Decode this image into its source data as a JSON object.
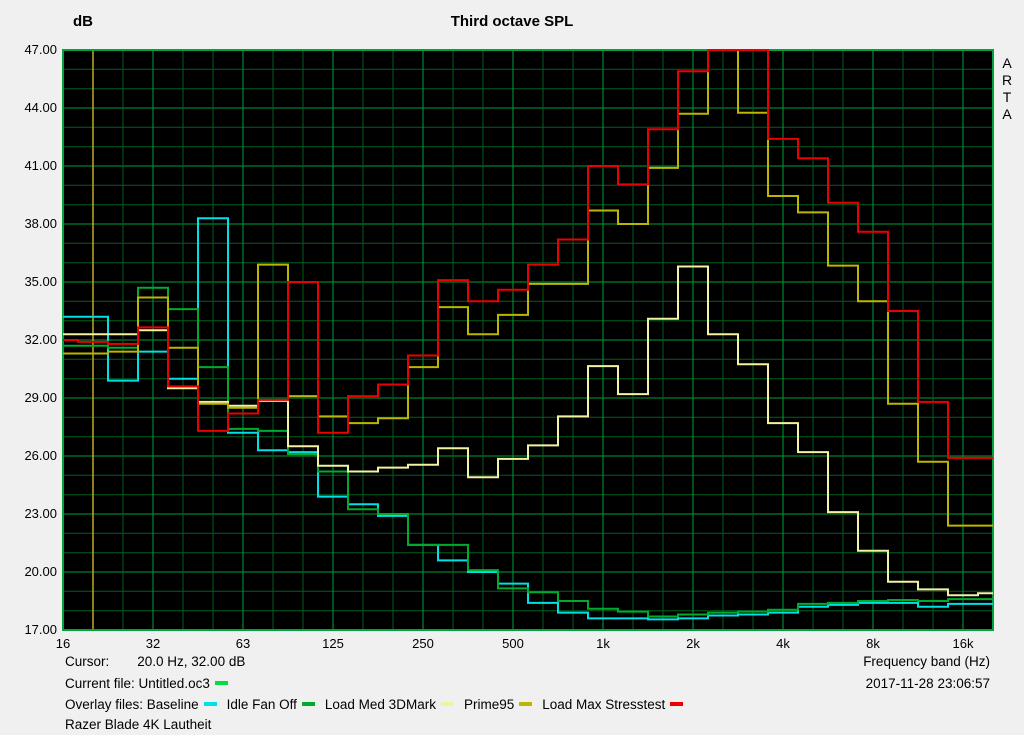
{
  "window": {
    "background": "#f0f0f0",
    "app_watermark": "ARTA"
  },
  "title": "Third octave SPL",
  "y_axis_label": "dB",
  "footer": {
    "cursor_label": "Cursor:",
    "cursor_value": "20.0 Hz, 32.00 dB",
    "current_file_label": "Current file:",
    "current_file_name": "Untitled.oc3",
    "current_file_color": "#00dd3c",
    "overlay_label": "Overlay files:",
    "xlabel": "Frequency band (Hz)",
    "datetime": "2017-11-28  23:06:57",
    "note": "Razer Blade 4K Lautheit"
  },
  "colors": {
    "plot_bg": "#000000",
    "grid_major": "#009e38",
    "grid_minor": "#00611c",
    "border": "#00a33c",
    "cursor_line": "#c0aa20",
    "text": "#000000"
  },
  "chart_data": {
    "type": "line",
    "subtype": "third-octave step spectrum",
    "title": "Third octave SPL",
    "xlabel": "Frequency band (Hz)",
    "ylabel": "dB",
    "ylim": [
      17,
      47
    ],
    "y_major_step_db": 3,
    "y_minor_step_db": 1,
    "grid": true,
    "y_ticks": [
      "47.00",
      "44.00",
      "41.00",
      "38.00",
      "35.00",
      "32.00",
      "29.00",
      "26.00",
      "23.00",
      "20.00",
      "17.00"
    ],
    "x_ticks": [
      {
        "label": "16",
        "band_index": 0
      },
      {
        "label": "32",
        "band_index": 3
      },
      {
        "label": "63",
        "band_index": 6
      },
      {
        "label": "125",
        "band_index": 9
      },
      {
        "label": "250",
        "band_index": 12
      },
      {
        "label": "500",
        "band_index": 15
      },
      {
        "label": "1k",
        "band_index": 18
      },
      {
        "label": "2k",
        "band_index": 21
      },
      {
        "label": "4k",
        "band_index": 24
      },
      {
        "label": "8k",
        "band_index": 27
      },
      {
        "label": "16k",
        "band_index": 30
      }
    ],
    "categories": [
      "16",
      "20",
      "25",
      "31.5",
      "40",
      "50",
      "63",
      "80",
      "100",
      "125",
      "160",
      "200",
      "250",
      "315",
      "400",
      "500",
      "630",
      "800",
      "1k",
      "1.25k",
      "1.6k",
      "2k",
      "2.5k",
      "3.15k",
      "4k",
      "5k",
      "6.3k",
      "8k",
      "10k",
      "12.5k",
      "16k",
      "20k"
    ],
    "cursor": {
      "freq": "20.0 Hz",
      "value_db": 32.0,
      "band_index": 1
    },
    "clip_note": "values above 47 are clipped at the plot top edge",
    "series": [
      {
        "name": "Baseline",
        "color": "#00e0e6",
        "values": [
          33.2,
          33.2,
          29.9,
          31.4,
          30.0,
          38.3,
          27.2,
          26.3,
          26.2,
          23.9,
          23.5,
          22.9,
          21.4,
          20.6,
          20.0,
          19.4,
          18.4,
          17.9,
          17.6,
          17.6,
          17.55,
          17.6,
          17.75,
          17.8,
          17.9,
          18.2,
          18.3,
          18.4,
          18.4,
          18.2,
          18.35,
          18.35
        ]
      },
      {
        "name": "Idle Fan Off",
        "color": "#00aa2e",
        "values": [
          31.7,
          31.7,
          31.6,
          34.7,
          33.6,
          30.6,
          27.4,
          27.3,
          26.1,
          25.2,
          23.25,
          23.0,
          21.4,
          21.4,
          20.1,
          19.15,
          18.95,
          18.5,
          18.1,
          17.95,
          17.7,
          17.8,
          17.9,
          17.95,
          18.05,
          18.35,
          18.4,
          18.5,
          18.55,
          18.5,
          18.6,
          18.6
        ]
      },
      {
        "name": "Load Med 3DMark",
        "color": "#f2f2a2",
        "values": [
          32.3,
          32.3,
          32.3,
          32.5,
          29.5,
          28.8,
          28.6,
          28.85,
          26.5,
          25.5,
          25.2,
          25.4,
          25.55,
          26.4,
          24.9,
          25.85,
          26.55,
          28.05,
          30.65,
          29.2,
          33.1,
          35.8,
          32.3,
          30.75,
          27.7,
          26.2,
          23.1,
          21.1,
          19.5,
          19.1,
          18.8,
          18.9
        ]
      },
      {
        "name": "Prime95",
        "color": "#bcb600",
        "values": [
          31.3,
          31.3,
          31.4,
          34.2,
          31.6,
          28.7,
          28.5,
          35.9,
          29.1,
          28.05,
          27.7,
          27.95,
          30.6,
          33.7,
          32.3,
          33.3,
          34.9,
          34.9,
          38.7,
          38.0,
          40.9,
          43.7,
          47.5,
          43.75,
          39.45,
          38.6,
          35.85,
          34.0,
          28.7,
          25.7,
          22.4,
          22.4
        ]
      },
      {
        "name": "Load Max Stresstest",
        "color": "#ea0000",
        "values": [
          32.0,
          31.9,
          31.8,
          32.65,
          29.6,
          27.3,
          28.2,
          28.9,
          35.0,
          27.2,
          29.1,
          29.7,
          31.2,
          35.1,
          34.0,
          34.6,
          35.9,
          37.2,
          41.0,
          40.05,
          42.9,
          45.9,
          47.5,
          47.5,
          42.4,
          41.4,
          39.1,
          37.6,
          33.5,
          28.8,
          25.9,
          25.9
        ]
      }
    ],
    "legend_position": "bottom"
  }
}
